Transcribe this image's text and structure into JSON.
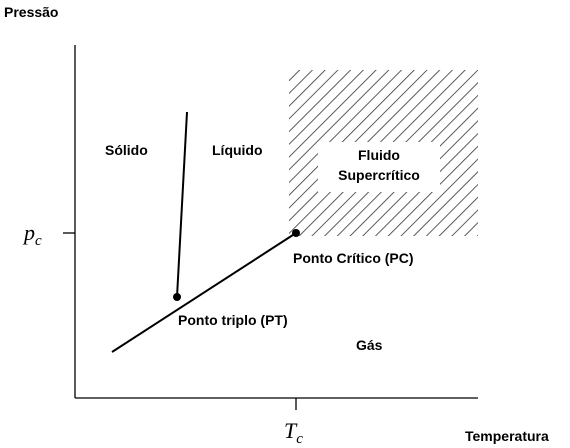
{
  "axes": {
    "y_label": "Pressão",
    "x_label": "Temperatura",
    "y_tick": {
      "symbol": "p",
      "subscript": "c"
    },
    "x_tick": {
      "symbol": "T",
      "subscript": "c"
    }
  },
  "regions": {
    "solid": "Sólido",
    "liquid": "Líquido",
    "gas": "Gás",
    "supercritical": [
      "Fluido",
      "Supercrítico"
    ]
  },
  "points": {
    "critical": "Ponto Crítico (PC)",
    "triple": "Ponto triplo (PT)"
  }
}
